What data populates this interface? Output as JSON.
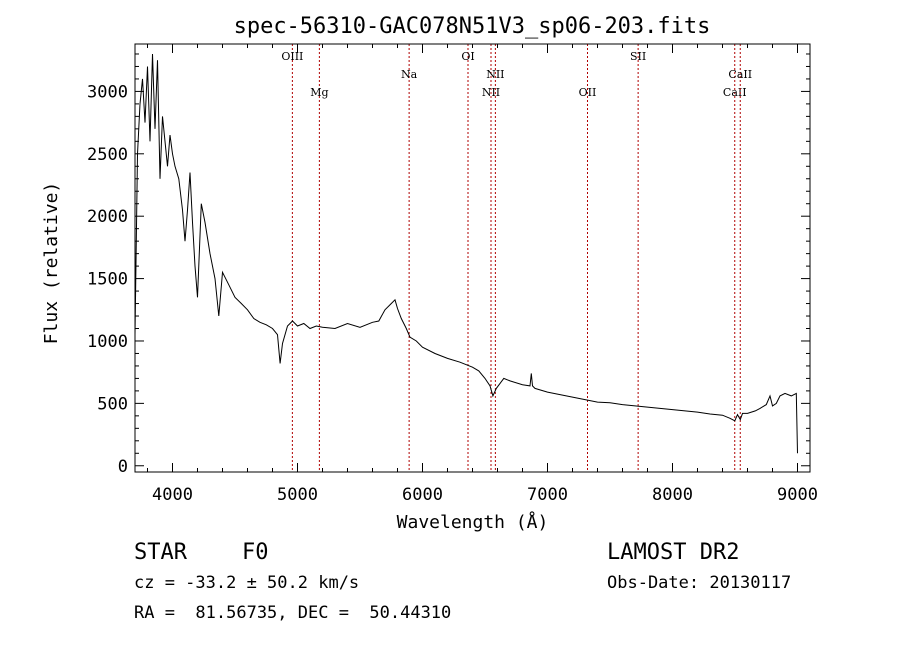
{
  "chart_data": {
    "type": "line",
    "title": "spec-56310-GAC078N51V3_sp06-203.fits",
    "xlabel": "Wavelength (Å)",
    "ylabel": "Flux (relative)",
    "xlim": [
      3700,
      9100
    ],
    "ylim": [
      -50,
      3380
    ],
    "x_ticks": [
      4000,
      5000,
      6000,
      7000,
      8000,
      9000
    ],
    "y_ticks": [
      0,
      500,
      1000,
      1500,
      2000,
      2500,
      3000
    ],
    "grid": false,
    "line_color": "#000000",
    "marker_color": "#b00000",
    "spectral_lines": [
      {
        "name": "OIII",
        "wavelength": 4959,
        "label_row": "top"
      },
      {
        "name": "Mg",
        "wavelength": 5175,
        "label_row": "bottom"
      },
      {
        "name": "Na",
        "wavelength": 5893,
        "label_row": "middle"
      },
      {
        "name": "OI",
        "wavelength": 6364,
        "label_row": "top"
      },
      {
        "name": "NII",
        "wavelength": 6548,
        "label_row": "bottom"
      },
      {
        "name": "NII",
        "wavelength": 6583,
        "label_row": "middle"
      },
      {
        "name": "OII",
        "wavelength": 7320,
        "label_row": "bottom"
      },
      {
        "name": "SII",
        "wavelength": 7725,
        "label_row": "top"
      },
      {
        "name": "CaII",
        "wavelength": 8498,
        "label_row": "bottom"
      },
      {
        "name": "CaII",
        "wavelength": 8542,
        "label_row": "middle"
      }
    ],
    "series": [
      {
        "x": [
          3700,
          3720,
          3740,
          3760,
          3780,
          3800,
          3820,
          3840,
          3860,
          3880,
          3900,
          3920,
          3940,
          3960,
          3980,
          4000,
          4020,
          4050,
          4080,
          4100,
          4120,
          4140,
          4160,
          4180,
          4200,
          4230,
          4260,
          4300,
          4340,
          4370,
          4400,
          4450,
          4500,
          4550,
          4600,
          4650,
          4700,
          4750,
          4800,
          4840,
          4861,
          4880,
          4920,
          4960,
          5000,
          5050,
          5100,
          5150,
          5200,
          5300,
          5400,
          5500,
          5600,
          5650,
          5700,
          5750,
          5780,
          5800,
          5830,
          5870,
          5900,
          5950,
          6000,
          6100,
          6200,
          6300,
          6400,
          6450,
          6500,
          6540,
          6563,
          6590,
          6650,
          6700,
          6800,
          6860,
          6870,
          6880,
          6900,
          7000,
          7100,
          7200,
          7300,
          7400,
          7500,
          7600,
          7700,
          7800,
          7900,
          8000,
          8100,
          8200,
          8300,
          8400,
          8460,
          8498,
          8520,
          8542,
          8560,
          8600,
          8662,
          8700,
          8750,
          8780,
          8800,
          8830,
          8860,
          8900,
          8950,
          8990,
          9000
        ],
        "y": [
          1050,
          2500,
          2900,
          3100,
          2750,
          3200,
          2600,
          3300,
          2700,
          3250,
          2300,
          2800,
          2600,
          2400,
          2650,
          2500,
          2400,
          2300,
          2050,
          1800,
          2050,
          2350,
          1950,
          1600,
          1350,
          2100,
          1950,
          1700,
          1500,
          1200,
          1550,
          1450,
          1350,
          1300,
          1250,
          1180,
          1150,
          1130,
          1100,
          1050,
          820,
          980,
          1120,
          1160,
          1120,
          1140,
          1100,
          1120,
          1110,
          1100,
          1140,
          1110,
          1150,
          1160,
          1250,
          1300,
          1330,
          1260,
          1180,
          1100,
          1030,
          1000,
          950,
          900,
          860,
          830,
          790,
          760,
          700,
          640,
          560,
          620,
          700,
          680,
          650,
          640,
          740,
          640,
          620,
          590,
          570,
          550,
          530,
          510,
          505,
          490,
          480,
          470,
          460,
          450,
          440,
          430,
          415,
          405,
          380,
          360,
          410,
          370,
          420,
          420,
          440,
          460,
          490,
          560,
          480,
          500,
          560,
          580,
          560,
          580,
          100
        ]
      }
    ]
  },
  "info": {
    "object_type": "STAR",
    "spectral_class": "F0",
    "survey": "LAMOST DR2",
    "redshift": "cz = -33.2 ± 50.2 km/s",
    "obs_date": "Obs-Date: 20130117",
    "coordinates": "RA =  81.56735, DEC =  50.44310"
  }
}
